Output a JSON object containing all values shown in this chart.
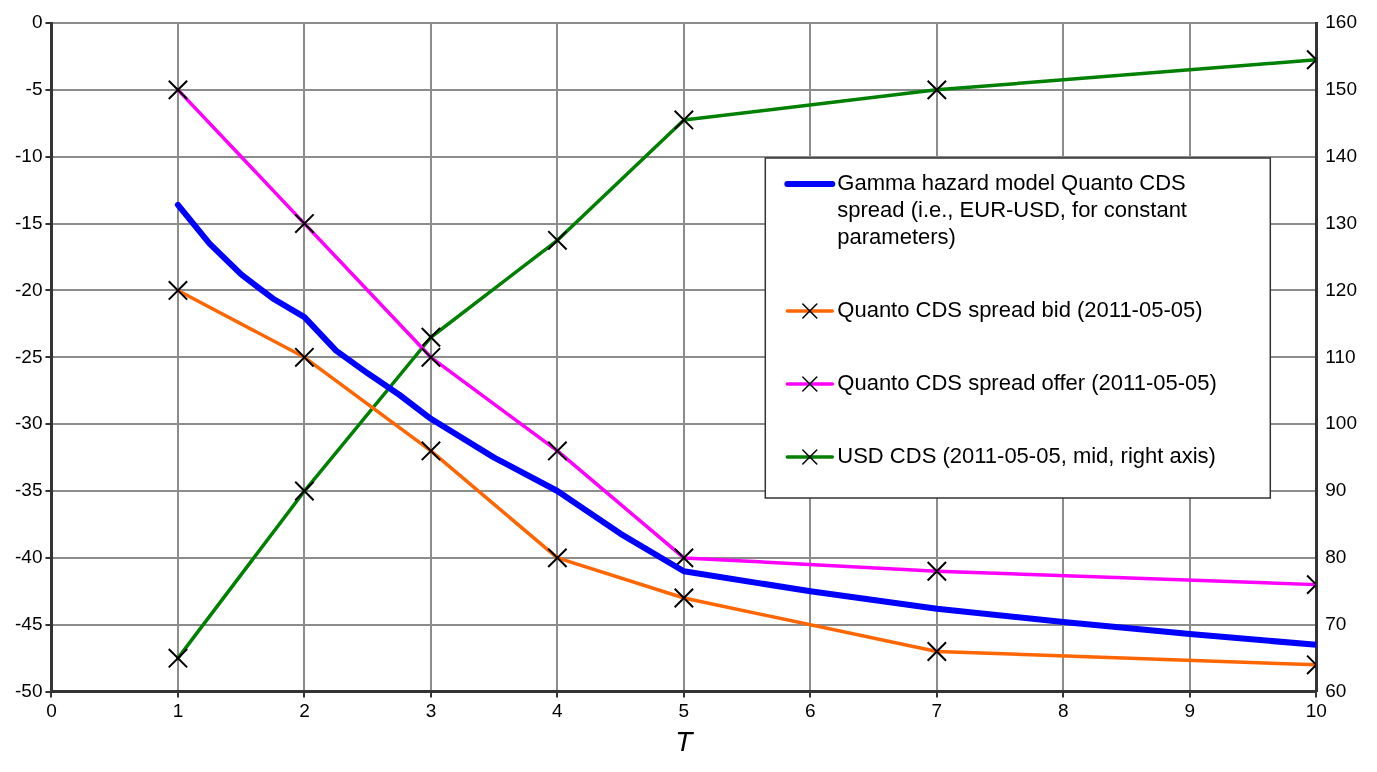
{
  "chart_data": {
    "type": "line",
    "xlabel": "T",
    "xlim": [
      0,
      10
    ],
    "xticks": [
      0,
      1,
      2,
      3,
      4,
      5,
      6,
      7,
      8,
      9,
      10
    ],
    "ylim": [
      -50,
      0
    ],
    "yticks": [
      -50,
      -45,
      -40,
      -35,
      -30,
      -25,
      -20,
      -15,
      -10,
      -5,
      0
    ],
    "y2lim": [
      60,
      160
    ],
    "y2ticks": [
      60,
      70,
      80,
      90,
      100,
      110,
      120,
      130,
      140,
      150,
      160
    ],
    "grid": true,
    "legend": "right",
    "line_style": "solid",
    "series": [
      {
        "name": "Gamma hazard model Quanto CDS spread (i.e., EUR-USD, for constant parameters)",
        "color": "#0000ff",
        "marker": "none",
        "x": [
          1,
          1.25,
          1.5,
          1.75,
          2,
          2.25,
          2.5,
          2.75,
          3,
          3.5,
          4,
          4.5,
          5,
          6,
          7,
          8,
          9,
          10
        ],
        "values": [
          -13.6,
          -16.5,
          -18.8,
          -20.6,
          -22,
          -24.5,
          -26.2,
          -27.8,
          -29.6,
          -32.5,
          -35,
          -38.2,
          -41,
          -42.5,
          -43.8,
          -44.8,
          -45.7,
          -46.5
        ]
      },
      {
        "name": "Quanto CDS spread bid (2011-05-05)",
        "color": "#ff6600",
        "marker": "cross",
        "x": [
          1,
          2,
          3,
          4,
          5,
          7,
          10
        ],
        "values": [
          -20,
          -25,
          -32,
          -40,
          -43,
          -47,
          -48
        ]
      },
      {
        "name": "Quanto CDS spread offer (2011-05-05)",
        "color": "#ff00ff",
        "marker": "cross",
        "x": [
          1,
          2,
          3,
          4,
          5,
          7,
          10
        ],
        "values": [
          -5,
          -15,
          -25,
          -32,
          -40,
          -41,
          -42
        ]
      },
      {
        "name": "USD CDS (2011-05-05, mid, right axis)",
        "color": "#008000",
        "marker": "cross",
        "axis": "y2",
        "x": [
          1,
          2,
          3,
          4,
          5,
          7,
          10
        ],
        "values": [
          65,
          90,
          113,
          127.5,
          145.5,
          150,
          154.5
        ]
      }
    ]
  }
}
